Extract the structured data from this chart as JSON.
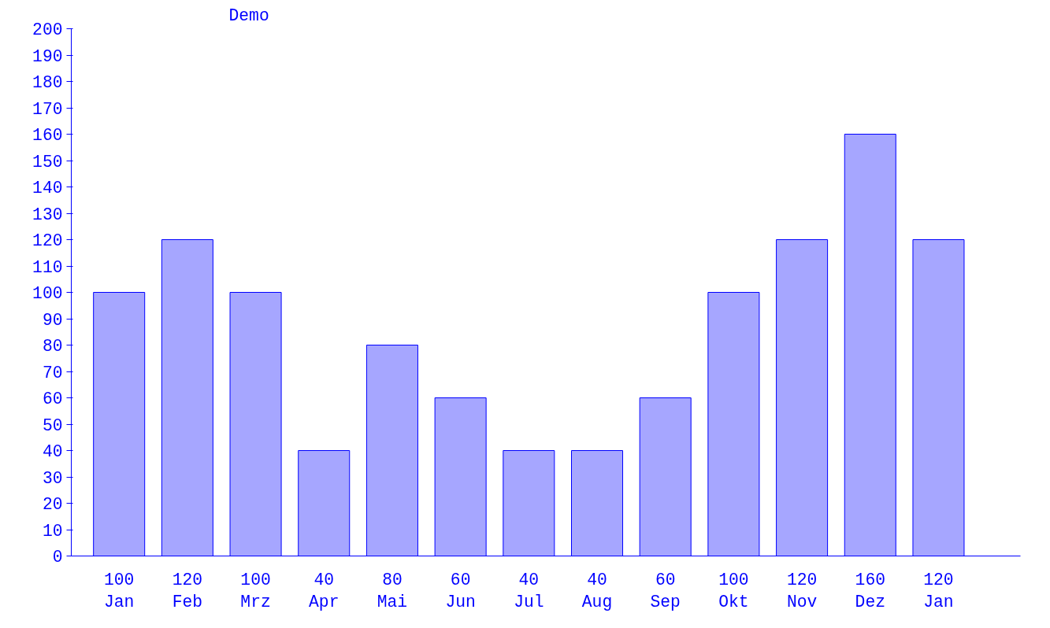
{
  "chart_data": {
    "type": "bar",
    "title": "Demo",
    "categories": [
      "Jan",
      "Feb",
      "Mrz",
      "Apr",
      "Mai",
      "Jun",
      "Jul",
      "Aug",
      "Sep",
      "Okt",
      "Nov",
      "Dez",
      "Jan"
    ],
    "values": [
      100,
      120,
      100,
      40,
      80,
      60,
      40,
      40,
      60,
      100,
      120,
      160,
      120
    ],
    "color": "#0000ff",
    "ylim": [
      0,
      200
    ],
    "yticks": [
      0,
      10,
      20,
      30,
      40,
      50,
      60,
      70,
      80,
      90,
      100,
      110,
      120,
      130,
      140,
      150,
      160,
      170,
      180,
      190,
      200
    ],
    "data_labels": true,
    "grid": false
  }
}
